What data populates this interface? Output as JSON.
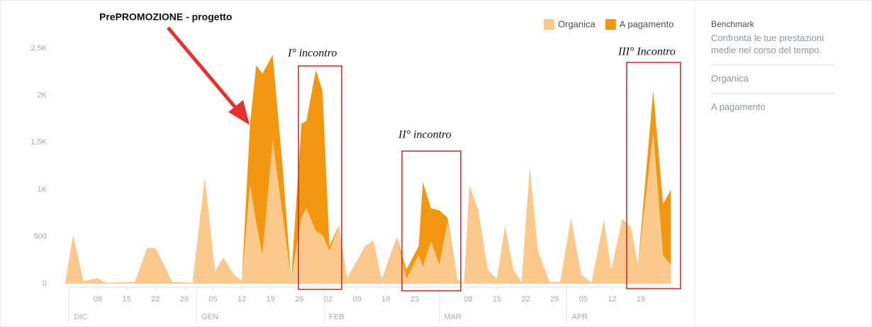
{
  "chart_data": {
    "type": "area",
    "title": "PrePROMOZIONE - progetto",
    "annotations": [
      "I° incontro",
      "II° incontro",
      "III° Incontro"
    ],
    "x": [
      -1,
      1,
      3.5,
      7,
      9,
      16,
      19,
      21,
      24,
      25,
      30,
      33,
      35.5,
      37.5,
      40,
      42,
      44,
      45.5,
      47,
      49.5,
      52,
      54,
      56.5,
      57.7,
      60,
      61.6,
      63.3,
      65.6,
      67.6,
      72,
      74,
      76,
      79.7,
      82,
      85,
      86,
      88,
      90,
      92,
      94.4,
      96,
      97.3,
      99.5,
      101.8,
      104,
      106,
      108,
      110,
      112,
      114,
      116.8,
      119.4,
      122,
      124.5,
      127,
      130,
      131.8,
      134.5,
      136.6,
      138.3,
      142,
      144.4,
      146.3
    ],
    "series": [
      {
        "name": "Organica",
        "color": "#fcc98c",
        "values": [
          0,
          520,
          30,
          60,
          10,
          20,
          380,
          380,
          120,
          20,
          10,
          1130,
          130,
          280,
          100,
          30,
          1050,
          650,
          300,
          1520,
          700,
          50,
          700,
          800,
          560,
          520,
          350,
          620,
          60,
          400,
          460,
          50,
          500,
          50,
          300,
          180,
          450,
          200,
          650,
          50,
          0,
          1050,
          780,
          150,
          50,
          620,
          150,
          20,
          1240,
          350,
          20,
          20,
          700,
          100,
          10,
          680,
          150,
          690,
          600,
          200,
          1600,
          300,
          200
        ]
      },
      {
        "name": "A pagamento",
        "color": "#f2970f",
        "values": [
          0,
          0,
          0,
          0,
          0,
          0,
          0,
          0,
          0,
          0,
          0,
          0,
          0,
          0,
          0,
          0,
          650,
          1670,
          1930,
          910,
          500,
          0,
          1000,
          930,
          1710,
          1530,
          50,
          0,
          0,
          0,
          0,
          0,
          0,
          100,
          100,
          900,
          350,
          580,
          50,
          0,
          0,
          0,
          0,
          0,
          0,
          0,
          0,
          0,
          0,
          0,
          0,
          0,
          0,
          0,
          0,
          0,
          0,
          0,
          0,
          0,
          450,
          550,
          800
        ]
      }
    ],
    "stacked": true,
    "xlim": [
      -1,
      147
    ],
    "xticks": [
      {
        "value": 7,
        "label": "08"
      },
      {
        "value": 14,
        "label": "15"
      },
      {
        "value": 21,
        "label": "22"
      },
      {
        "value": 28,
        "label": "29"
      },
      {
        "value": 35,
        "label": "05"
      },
      {
        "value": 42,
        "label": "12"
      },
      {
        "value": 49,
        "label": "19"
      },
      {
        "value": 56,
        "label": "26"
      },
      {
        "value": 63,
        "label": "02"
      },
      {
        "value": 70,
        "label": "09"
      },
      {
        "value": 77,
        "label": "16"
      },
      {
        "value": 84,
        "label": "23"
      },
      {
        "value": 97,
        "label": "08"
      },
      {
        "value": 104,
        "label": "15"
      },
      {
        "value": 111,
        "label": "22"
      },
      {
        "value": 118,
        "label": "29"
      },
      {
        "value": 125,
        "label": "05"
      },
      {
        "value": 132,
        "label": "12"
      },
      {
        "value": 139,
        "label": "19"
      }
    ],
    "months": [
      {
        "value": 0,
        "label": "DIC"
      },
      {
        "value": 31,
        "label": "GEN"
      },
      {
        "value": 62,
        "label": "FEB"
      },
      {
        "value": 90,
        "label": "MAR"
      },
      {
        "value": 121,
        "label": "APR"
      }
    ],
    "ylim": [
      0,
      2500
    ],
    "yticks": [
      0,
      500,
      {
        "value": 1000,
        "label": "1K"
      },
      {
        "value": 1500,
        "label": "1,5K"
      },
      {
        "value": 2000,
        "label": "2K"
      },
      {
        "value": 2500,
        "label": "2,5K"
      }
    ],
    "grid": false,
    "legend": "top-right"
  },
  "sidebar": {
    "title": "Benchmark",
    "description": "Confronta le tue prestazioni medie nel corso del tempo.",
    "items": [
      "Organica",
      "A pagamento"
    ]
  }
}
